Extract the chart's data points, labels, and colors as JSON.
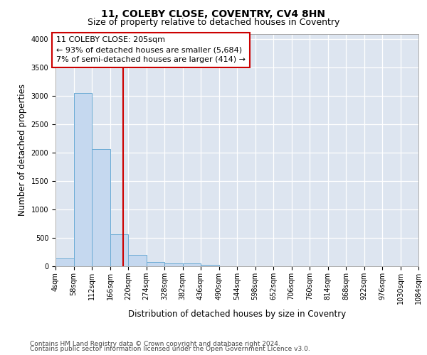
{
  "title": "11, COLEBY CLOSE, COVENTRY, CV4 8HN",
  "subtitle": "Size of property relative to detached houses in Coventry",
  "xlabel": "Distribution of detached houses by size in Coventry",
  "ylabel": "Number of detached properties",
  "footnote1": "Contains HM Land Registry data © Crown copyright and database right 2024.",
  "footnote2": "Contains public sector information licensed under the Open Government Licence v3.0.",
  "bin_edges": [
    4,
    58,
    112,
    166,
    220,
    274,
    328,
    382,
    436,
    490,
    544,
    598,
    652,
    706,
    760,
    814,
    868,
    922,
    976,
    1030,
    1084
  ],
  "bar_heights": [
    140,
    3060,
    2060,
    560,
    200,
    80,
    55,
    45,
    30,
    0,
    0,
    0,
    0,
    0,
    0,
    0,
    0,
    0,
    0,
    0
  ],
  "bar_color": "#c5d8ef",
  "bar_edge_color": "#6aaad4",
  "tick_labels": [
    "4sqm",
    "58sqm",
    "112sqm",
    "166sqm",
    "220sqm",
    "274sqm",
    "328sqm",
    "382sqm",
    "436sqm",
    "490sqm",
    "544sqm",
    "598sqm",
    "652sqm",
    "706sqm",
    "760sqm",
    "814sqm",
    "868sqm",
    "922sqm",
    "976sqm",
    "1030sqm",
    "1084sqm"
  ],
  "property_size": 205,
  "vline_color": "#cc0000",
  "annotation_box_color": "#cc0000",
  "annotation_lines": [
    "11 COLEBY CLOSE: 205sqm",
    "← 93% of detached houses are smaller (5,684)",
    "7% of semi-detached houses are larger (414) →"
  ],
  "ylim": [
    0,
    4100
  ],
  "yticks": [
    0,
    500,
    1000,
    1500,
    2000,
    2500,
    3000,
    3500,
    4000
  ],
  "background_color": "#dde5f0",
  "grid_color": "#ffffff",
  "title_fontsize": 10,
  "subtitle_fontsize": 9,
  "axis_label_fontsize": 8.5,
  "tick_fontsize": 7,
  "annotation_fontsize": 8,
  "footnote_fontsize": 6.5
}
